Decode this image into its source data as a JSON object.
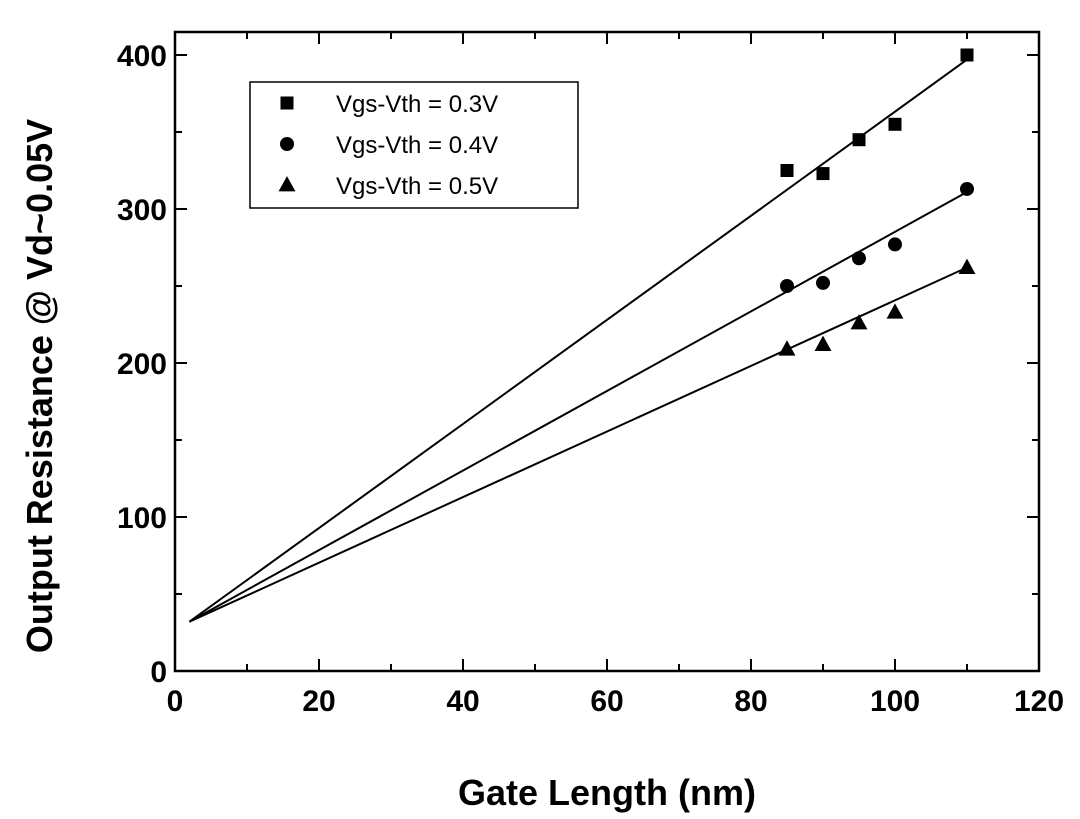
{
  "chart_data": {
    "type": "scatter",
    "title": "",
    "xlabel": "Gate Length (nm)",
    "ylabel": "Output Resistance @ Vd~0.05V",
    "xlim": [
      0,
      120
    ],
    "ylim": [
      0,
      400
    ],
    "xticks": [
      0,
      20,
      40,
      60,
      80,
      100,
      120
    ],
    "yticks": [
      0,
      100,
      200,
      300,
      400
    ],
    "grid": false,
    "legend_position": "top-left",
    "series": [
      {
        "name": "Vgs-Vth = 0.3V",
        "marker": "square",
        "x": [
          85,
          90,
          95,
          100,
          110
        ],
        "y": [
          325,
          323,
          345,
          355,
          400
        ],
        "fit": {
          "x": [
            2,
            110
          ],
          "y": [
            32,
            397
          ]
        }
      },
      {
        "name": "Vgs-Vth = 0.4V",
        "marker": "circle",
        "x": [
          85,
          90,
          95,
          100,
          110
        ],
        "y": [
          250,
          252,
          268,
          277,
          313
        ],
        "fit": {
          "x": [
            2,
            110
          ],
          "y": [
            32,
            311
          ]
        }
      },
      {
        "name": "Vgs-Vth = 0.5V",
        "marker": "triangle",
        "x": [
          85,
          90,
          95,
          100,
          110
        ],
        "y": [
          209,
          212,
          226,
          233,
          262
        ],
        "fit": {
          "x": [
            2,
            110
          ],
          "y": [
            32,
            262
          ]
        }
      }
    ]
  }
}
